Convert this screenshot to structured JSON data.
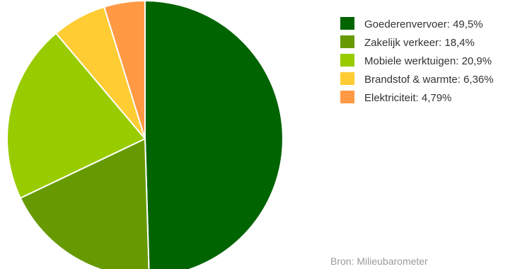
{
  "chart_data": {
    "type": "pie",
    "categories": [
      "Goederenvervoer",
      "Zakelijk verkeer",
      "Mobiele werktuigen",
      "Brandstof & warmte",
      "Elektriciteit"
    ],
    "values": [
      49.5,
      18.4,
      20.9,
      6.36,
      4.79
    ],
    "colors": [
      "#006400",
      "#669a00",
      "#99cc00",
      "#ffcc33",
      "#ff9944"
    ],
    "legend_labels": [
      "Goederenvervoer: 49,5%",
      "Zakelijk verkeer: 18,4%",
      "Mobiele werktuigen: 20,9%",
      "Brandstof & warmte: 6,36%",
      "Elektriciteit: 4,79%"
    ],
    "legend_position": "top-right",
    "start_angle": "12 o'clock",
    "direction": "clockwise",
    "source": "Bron: Milieubarometer"
  }
}
